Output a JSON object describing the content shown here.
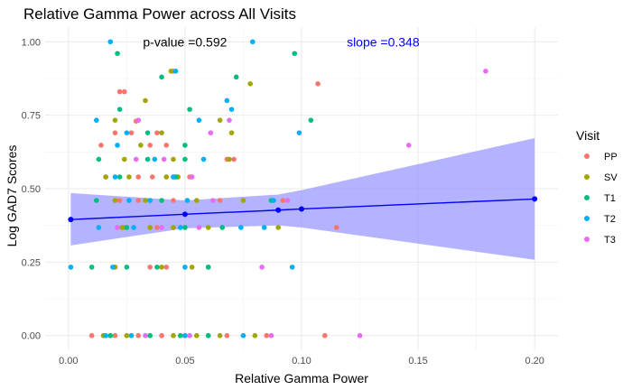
{
  "chart_data": {
    "type": "scatter",
    "title": "Relative Gamma Power across All Visits",
    "xlabel": "Relative Gamma Power",
    "ylabel": "Log GAD7 Scores",
    "xlim": [
      -0.01,
      0.21
    ],
    "ylim": [
      -0.05,
      1.05
    ],
    "x_ticks": [
      0.0,
      0.05,
      0.1,
      0.15,
      0.2
    ],
    "x_tick_labels": [
      "0.00",
      "0.05",
      "0.10",
      "0.15",
      "0.20"
    ],
    "y_ticks": [
      0.0,
      0.25,
      0.5,
      0.75,
      1.0
    ],
    "y_tick_labels": [
      "0.00",
      "0.25",
      "0.50",
      "0.75",
      "1.00"
    ],
    "grid": true,
    "annotations": [
      {
        "text": "p-value =0.592",
        "x": 0.05,
        "y": 1.0,
        "color": "#000000"
      },
      {
        "text": "slope =0.348",
        "x": 0.135,
        "y": 1.0,
        "color": "#0000ff"
      }
    ],
    "legend": {
      "title": "Visit",
      "placement": "right"
    },
    "series": [
      {
        "name": "PP",
        "color": "#F8766D",
        "points": [
          [
            0.022,
            0.83
          ],
          [
            0.024,
            0.83
          ],
          [
            0.045,
            0.9
          ],
          [
            0.107,
            0.857
          ],
          [
            0.02,
            0.69
          ],
          [
            0.014,
            0.648
          ],
          [
            0.027,
            0.69
          ],
          [
            0.029,
            0.73
          ],
          [
            0.035,
            0.648
          ],
          [
            0.038,
            0.69
          ],
          [
            0.042,
            0.648
          ],
          [
            0.068,
            0.6
          ],
          [
            0.071,
            0.6
          ],
          [
            0.016,
            0.54
          ],
          [
            0.03,
            0.54
          ],
          [
            0.036,
            0.54
          ],
          [
            0.052,
            0.54
          ],
          [
            0.022,
            0.46
          ],
          [
            0.03,
            0.46
          ],
          [
            0.045,
            0.46
          ],
          [
            0.065,
            0.46
          ],
          [
            0.092,
            0.46
          ],
          [
            0.115,
            0.368
          ],
          [
            0.05,
            0.368
          ],
          [
            0.038,
            0.368
          ],
          [
            0.024,
            0.368
          ],
          [
            0.02,
            0.233
          ],
          [
            0.035,
            0.233
          ],
          [
            0.042,
            0.233
          ],
          [
            0.01,
            0.0
          ],
          [
            0.02,
            0.0
          ],
          [
            0.03,
            0.0
          ],
          [
            0.04,
            0.0
          ],
          [
            0.05,
            0.0
          ],
          [
            0.06,
            0.0
          ],
          [
            0.068,
            0.0
          ],
          [
            0.085,
            0.0
          ],
          [
            0.11,
            0.0
          ]
        ]
      },
      {
        "name": "SV",
        "color": "#A3A500",
        "points": [
          [
            0.078,
            0.857
          ],
          [
            0.044,
            0.9
          ],
          [
            0.033,
            0.8
          ],
          [
            0.02,
            0.733
          ],
          [
            0.065,
            0.733
          ],
          [
            0.07,
            0.69
          ],
          [
            0.04,
            0.69
          ],
          [
            0.031,
            0.648
          ],
          [
            0.024,
            0.6
          ],
          [
            0.045,
            0.6
          ],
          [
            0.069,
            0.6
          ],
          [
            0.016,
            0.54
          ],
          [
            0.026,
            0.54
          ],
          [
            0.042,
            0.54
          ],
          [
            0.047,
            0.54
          ],
          [
            0.02,
            0.46
          ],
          [
            0.033,
            0.46
          ],
          [
            0.055,
            0.46
          ],
          [
            0.075,
            0.46
          ],
          [
            0.023,
            0.368
          ],
          [
            0.035,
            0.368
          ],
          [
            0.045,
            0.368
          ],
          [
            0.06,
            0.368
          ],
          [
            0.09,
            0.368
          ],
          [
            0.02,
            0.233
          ],
          [
            0.04,
            0.233
          ],
          [
            0.053,
            0.233
          ],
          [
            0.06,
            0.233
          ],
          [
            0.015,
            0.0
          ],
          [
            0.025,
            0.0
          ],
          [
            0.045,
            0.0
          ],
          [
            0.055,
            0.0
          ],
          [
            0.065,
            0.0
          ],
          [
            0.08,
            0.0
          ]
        ]
      },
      {
        "name": "T1",
        "color": "#00BF7D",
        "points": [
          [
            0.021,
            0.96
          ],
          [
            0.097,
            0.96
          ],
          [
            0.04,
            0.88
          ],
          [
            0.072,
            0.88
          ],
          [
            0.022,
            0.77
          ],
          [
            0.052,
            0.77
          ],
          [
            0.104,
            0.733
          ],
          [
            0.034,
            0.69
          ],
          [
            0.05,
            0.648
          ],
          [
            0.013,
            0.6
          ],
          [
            0.034,
            0.6
          ],
          [
            0.05,
            0.6
          ],
          [
            0.022,
            0.54
          ],
          [
            0.046,
            0.54
          ],
          [
            0.012,
            0.46
          ],
          [
            0.04,
            0.46
          ],
          [
            0.087,
            0.46
          ],
          [
            0.025,
            0.368
          ],
          [
            0.05,
            0.368
          ],
          [
            0.066,
            0.368
          ],
          [
            0.01,
            0.233
          ],
          [
            0.025,
            0.233
          ],
          [
            0.038,
            0.233
          ],
          [
            0.06,
            0.233
          ],
          [
            0.018,
            0.0
          ],
          [
            0.035,
            0.0
          ],
          [
            0.048,
            0.0
          ],
          [
            0.06,
            0.0
          ]
        ]
      },
      {
        "name": "T2",
        "color": "#00B0F6",
        "points": [
          [
            0.018,
            1.0
          ],
          [
            0.079,
            1.0
          ],
          [
            0.046,
            0.9
          ],
          [
            0.068,
            0.8
          ],
          [
            0.07,
            0.77
          ],
          [
            0.012,
            0.733
          ],
          [
            0.056,
            0.733
          ],
          [
            0.099,
            0.69
          ],
          [
            0.025,
            0.69
          ],
          [
            0.021,
            0.648
          ],
          [
            0.037,
            0.6
          ],
          [
            0.058,
            0.6
          ],
          [
            0.02,
            0.54
          ],
          [
            0.045,
            0.54
          ],
          [
            0.026,
            0.46
          ],
          [
            0.035,
            0.46
          ],
          [
            0.051,
            0.46
          ],
          [
            0.088,
            0.46
          ],
          [
            0.013,
            0.368
          ],
          [
            0.028,
            0.368
          ],
          [
            0.048,
            0.368
          ],
          [
            0.074,
            0.368
          ],
          [
            0.084,
            0.368
          ],
          [
            0.001,
            0.233
          ],
          [
            0.019,
            0.233
          ],
          [
            0.05,
            0.233
          ],
          [
            0.096,
            0.233
          ],
          [
            0.016,
            0.0
          ],
          [
            0.027,
            0.0
          ],
          [
            0.05,
            0.0
          ],
          [
            0.075,
            0.0
          ]
        ]
      },
      {
        "name": "T3",
        "color": "#E76BF3",
        "points": [
          [
            0.179,
            0.9
          ],
          [
            0.146,
            0.648
          ],
          [
            0.061,
            0.69
          ],
          [
            0.069,
            0.733
          ],
          [
            0.03,
            0.733
          ],
          [
            0.029,
            0.6
          ],
          [
            0.041,
            0.6
          ],
          [
            0.053,
            0.54
          ],
          [
            0.062,
            0.46
          ],
          [
            0.094,
            0.46
          ],
          [
            0.021,
            0.368
          ],
          [
            0.04,
            0.368
          ],
          [
            0.056,
            0.368
          ],
          [
            0.083,
            0.233
          ],
          [
            0.125,
            0.0
          ],
          [
            0.087,
            0.0
          ],
          [
            0.052,
            0.0
          ],
          [
            0.033,
            0.0
          ]
        ]
      }
    ],
    "fit_line": {
      "color": "#0000ff",
      "points": [
        [
          0.001,
          0.395
        ],
        [
          0.05,
          0.413
        ],
        [
          0.09,
          0.427
        ],
        [
          0.1,
          0.431
        ],
        [
          0.2,
          0.465
        ]
      ]
    },
    "confidence_band": {
      "color": "#9999ff",
      "upper": [
        [
          0.001,
          0.485
        ],
        [
          0.05,
          0.46
        ],
        [
          0.09,
          0.48
        ],
        [
          0.1,
          0.495
        ],
        [
          0.2,
          0.672
        ]
      ],
      "lower": [
        [
          0.001,
          0.307
        ],
        [
          0.05,
          0.365
        ],
        [
          0.09,
          0.375
        ],
        [
          0.1,
          0.368
        ],
        [
          0.2,
          0.258
        ]
      ]
    }
  }
}
